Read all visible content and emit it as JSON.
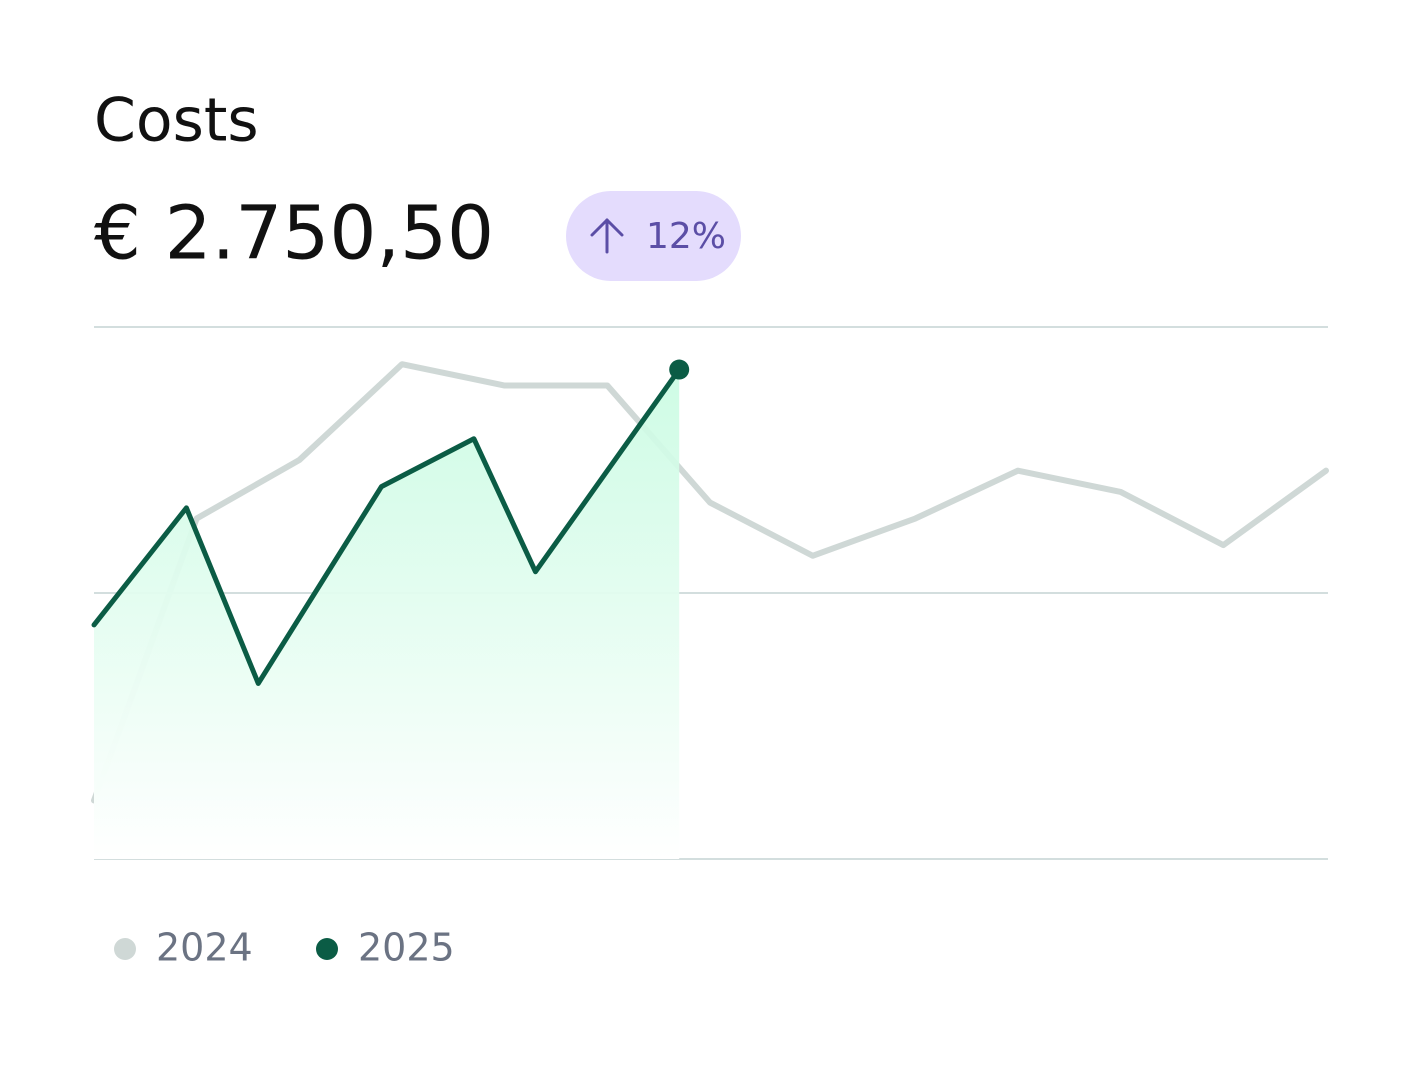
{
  "chart_data": {
    "type": "line",
    "title": "Costs",
    "subtitle": "€ 2.750,50",
    "change_badge": "12%",
    "xlim": [
      0,
      12
    ],
    "ylim": [
      0,
      100
    ],
    "yticks": [
      0,
      50,
      100
    ],
    "grid": true,
    "series": [
      {
        "name": "2024",
        "color": "#cfd8d6",
        "x": [
          0,
          1,
          2,
          3,
          4,
          5,
          6,
          7,
          8,
          9,
          10,
          11,
          12
        ],
        "values": [
          11,
          64,
          75,
          93,
          89,
          89,
          67,
          57,
          64,
          73,
          69,
          59,
          73
        ]
      },
      {
        "name": "2025",
        "color": "#0b5c45",
        "x": [
          0,
          0.9,
          1.6,
          2.8,
          3.7,
          4.3,
          5.7
        ],
        "values": [
          44,
          66,
          33,
          70,
          79,
          54,
          92
        ]
      }
    ]
  }
}
